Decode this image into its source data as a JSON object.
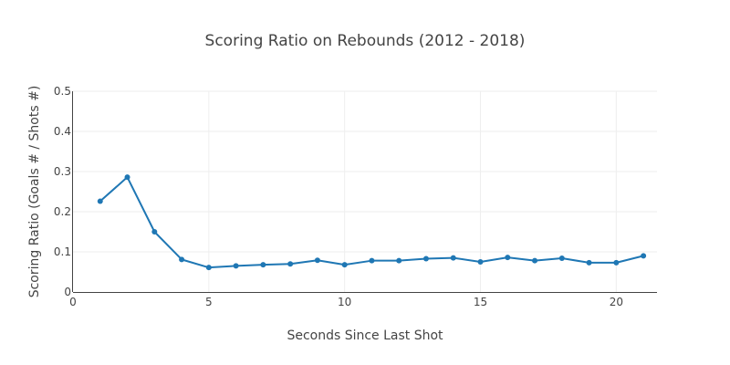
{
  "chart_data": {
    "type": "line",
    "title": "Scoring Ratio on Rebounds (2012 - 2018)",
    "xlabel": "Seconds Since Last Shot",
    "ylabel": "Scoring Ratio (Goals # / Shots #)",
    "xlim": [
      0,
      21.5
    ],
    "ylim": [
      0,
      0.5
    ],
    "xticks": [
      0,
      5,
      10,
      15,
      20
    ],
    "yticks": [
      0,
      0.1,
      0.2,
      0.3,
      0.4,
      0.5
    ],
    "xtick_labels": [
      "0",
      "5",
      "10",
      "15",
      "20"
    ],
    "ytick_labels": [
      "0",
      "0.1",
      "0.2",
      "0.3",
      "0.4",
      "0.5"
    ],
    "grid": true,
    "legend": false,
    "color": "#1f77b4",
    "x": [
      1,
      2,
      3,
      4,
      5,
      6,
      7,
      8,
      9,
      10,
      11,
      12,
      13,
      14,
      15,
      16,
      17,
      18,
      19,
      20,
      21
    ],
    "y": [
      0.226,
      0.286,
      0.15,
      0.081,
      0.061,
      0.065,
      0.068,
      0.07,
      0.079,
      0.068,
      0.078,
      0.078,
      0.083,
      0.085,
      0.075,
      0.086,
      0.078,
      0.084,
      0.073,
      0.073,
      0.09
    ]
  }
}
